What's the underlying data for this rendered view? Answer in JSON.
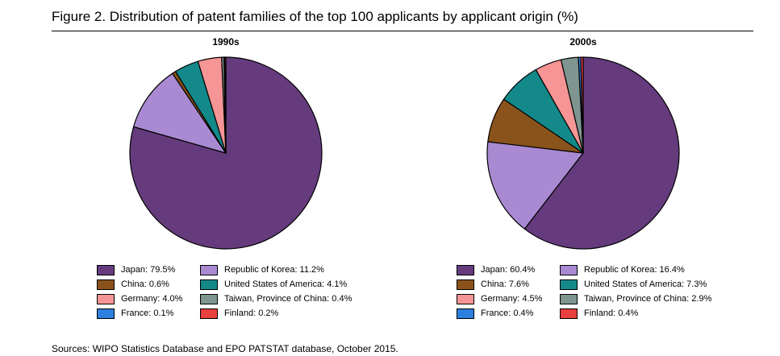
{
  "figure_title": "Figure 2. Distribution of patent families of the top 100 applicants by applicant origin (%)",
  "source": "Sources: WIPO Statistics Database and EPO PATSTAT database, October 2015.",
  "chart_data": [
    {
      "type": "pie",
      "title": "1990s",
      "slices": [
        {
          "label": "Japan",
          "value": 79.5,
          "legend": "Japan: 79.5%",
          "color": "#653B7D"
        },
        {
          "label": "Republic of Korea",
          "value": 11.2,
          "legend": "Republic of Korea: 11.2%",
          "color": "#A98AD2"
        },
        {
          "label": "China",
          "value": 0.6,
          "legend": "China: 0.6%",
          "color": "#8A531B"
        },
        {
          "label": "United States of America",
          "value": 4.1,
          "legend": "United States of America: 4.1%",
          "color": "#13898A"
        },
        {
          "label": "Germany",
          "value": 4.0,
          "legend": "Germany: 4.0%",
          "color": "#F59595"
        },
        {
          "label": "Taiwan, Province of China",
          "value": 0.4,
          "legend": "Taiwan, Province of China: 0.4%",
          "color": "#7F9690"
        },
        {
          "label": "France",
          "value": 0.1,
          "legend": "France: 0.1%",
          "color": "#2D7FE0"
        },
        {
          "label": "Finland",
          "value": 0.2,
          "legend": "Finland: 0.2%",
          "color": "#E8403F"
        }
      ]
    },
    {
      "type": "pie",
      "title": "2000s",
      "slices": [
        {
          "label": "Japan",
          "value": 60.4,
          "legend": "Japan: 60.4%",
          "color": "#653B7D"
        },
        {
          "label": "Republic of Korea",
          "value": 16.4,
          "legend": "Republic of Korea: 16.4%",
          "color": "#A98AD2"
        },
        {
          "label": "China",
          "value": 7.6,
          "legend": "China: 7.6%",
          "color": "#8A531B"
        },
        {
          "label": "United States of America",
          "value": 7.3,
          "legend": "United States of America: 7.3%",
          "color": "#13898A"
        },
        {
          "label": "Germany",
          "value": 4.5,
          "legend": "Germany: 4.5%",
          "color": "#F59595"
        },
        {
          "label": "Taiwan, Province of China",
          "value": 2.9,
          "legend": "Taiwan, Province of China: 2.9%",
          "color": "#7F9690"
        },
        {
          "label": "France",
          "value": 0.4,
          "legend": "France: 0.4%",
          "color": "#2D7FE0"
        },
        {
          "label": "Finland",
          "value": 0.4,
          "legend": "Finland: 0.4%",
          "color": "#E8403F"
        }
      ]
    }
  ]
}
